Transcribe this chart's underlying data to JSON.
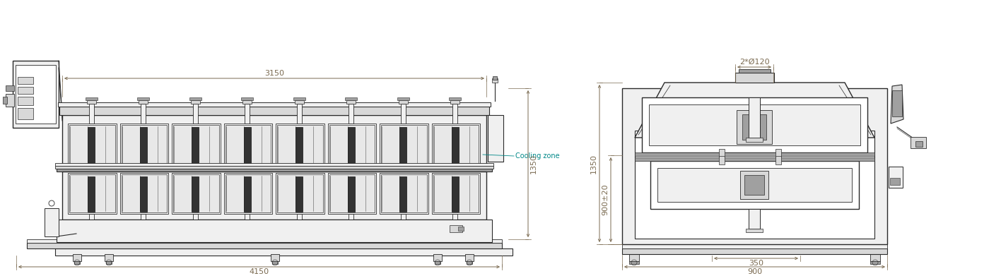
{
  "fig_width": 14.16,
  "fig_height": 3.91,
  "dpi": 100,
  "bg_color": "#ffffff",
  "line_color": "#2a2a2a",
  "dim_color": "#7a6a50",
  "cyan_color": "#008888",
  "gray_light": "#f0f0f0",
  "gray_med": "#d8d8d8",
  "gray_dark": "#a0a0a0",
  "hatch_bg": "#e8e8e8",
  "left_view": {
    "dim_3150": "3150",
    "dim_4150": "4150",
    "dim_1350": "1350",
    "cooling_zone": "Cooling zone",
    "n_upper_modules": 8,
    "n_lower_modules": 8
  },
  "right_view": {
    "dim_900": "900",
    "dim_350": "350",
    "dim_1350": "1350",
    "dim_900pm20": "900±20",
    "dim_d120": "2*Ø120"
  }
}
